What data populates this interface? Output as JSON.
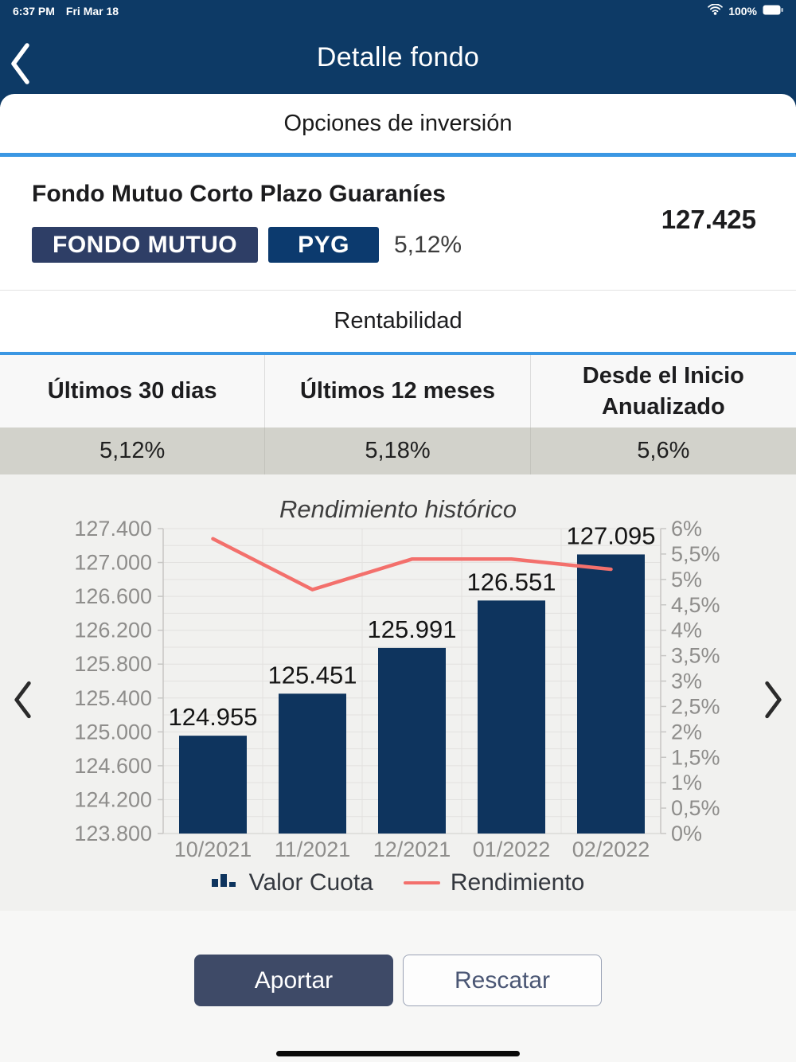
{
  "status_bar": {
    "time": "6:37 PM",
    "date": "Fri Mar 18",
    "battery": "100%"
  },
  "header": {
    "title": "Detalle fondo"
  },
  "tabs": {
    "active": "Opciones de inversión"
  },
  "fund": {
    "name": "Fondo Mutuo Corto Plazo Guaraníes",
    "badges": [
      {
        "label": "FONDO MUTUO"
      },
      {
        "label": "PYG"
      }
    ],
    "rate": "5,12%",
    "value": "127.425"
  },
  "returns": {
    "title": "Rentabilidad",
    "columns": [
      "Últimos 30 dias",
      "Últimos 12 meses",
      "Desde el Inicio Anualizado"
    ],
    "values": [
      "5,12%",
      "5,18%",
      "5,6%"
    ]
  },
  "chart_data": {
    "type": "bar",
    "title": "Rendimiento histórico",
    "categories": [
      "10/2021",
      "11/2021",
      "12/2021",
      "01/2022",
      "02/2022"
    ],
    "series": [
      {
        "name": "Valor Cuota",
        "type": "bar",
        "axis": "left",
        "values": [
          124955,
          125451,
          125991,
          126551,
          127095
        ],
        "labels": [
          "124.955",
          "125.451",
          "125.991",
          "126.551",
          "127.095"
        ],
        "color": "#0e345e"
      },
      {
        "name": "Rendimiento",
        "type": "line",
        "axis": "right",
        "values": [
          5.8,
          4.8,
          5.4,
          5.4,
          5.2
        ],
        "color": "#f3706c"
      }
    ],
    "y_left": {
      "min": 123800,
      "max": 127400,
      "grid_step": 200,
      "label_step": 400,
      "tick_labels": [
        "127.400",
        "127.000",
        "126.600",
        "126.200",
        "125.800",
        "125.400",
        "125.000",
        "124.600",
        "124.200",
        "123.800"
      ]
    },
    "y_right": {
      "min": 0,
      "max": 6,
      "tick_step": 0.5,
      "tick_labels": [
        "6%",
        "5,5%",
        "5%",
        "4,5%",
        "4%",
        "3,5%",
        "3%",
        "2,5%",
        "2%",
        "1,5%",
        "1%",
        "0,5%",
        "0%"
      ]
    },
    "legend_position": "bottom",
    "grid": true
  },
  "actions": {
    "aportar": "Aportar",
    "rescatar": "Rescatar"
  },
  "colors": {
    "navy_header": "#0d3a66",
    "accent_blue": "#3b97e3",
    "bar_navy": "#0e345e",
    "line_red": "#f3706c",
    "value_row_bg": "#d2d2cb",
    "badge_fondo": "#2e3e66",
    "badge_pyg": "#0c3a6e"
  }
}
